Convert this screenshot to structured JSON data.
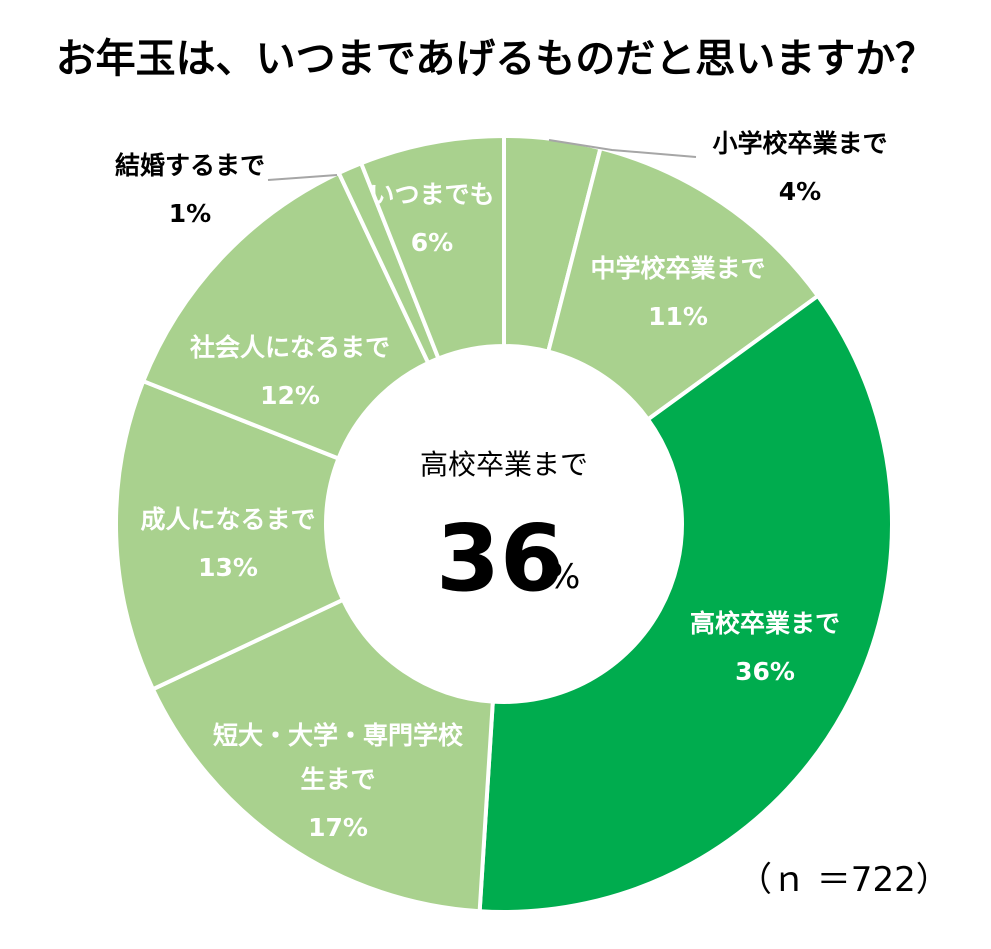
{
  "title": "お年玉は、いつまであげるものだと思いますか？",
  "center": {
    "label": "高校卒業まで",
    "value": "36",
    "unit": "%"
  },
  "note": "（ｎ ＝722）",
  "colors": {
    "highlight": "#00AC4E",
    "other": "#A9D18E",
    "separator": "#ffffff",
    "leader": "#A6A6A6"
  },
  "chart_data": {
    "type": "pie",
    "style": "donut",
    "title": "お年玉は、いつまであげるものだと思いますか？",
    "categories": [
      "小学校卒業まで",
      "中学校卒業まで",
      "高校卒業まで",
      "短大・大学・専門学校生まで",
      "成人になるまで",
      "社会人になるまで",
      "結婚するまで",
      "いつまでも"
    ],
    "values": [
      4,
      11,
      36,
      17,
      13,
      12,
      1,
      6
    ],
    "value_labels": [
      "4%",
      "11%",
      "36%",
      "17%",
      "13%",
      "12%",
      "1%",
      "6%"
    ],
    "highlighted": "高校卒業まで",
    "n": 722
  }
}
